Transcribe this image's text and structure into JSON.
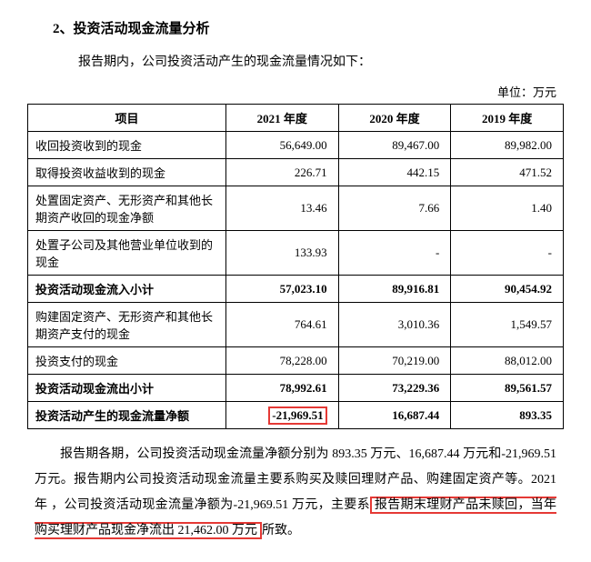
{
  "section_title": "2、投资活动现金流量分析",
  "intro": "报告期内，公司投资活动产生的现金流量情况如下：",
  "unit": "单位：万元",
  "table": {
    "headers": [
      "项目",
      "2021 年度",
      "2020 年度",
      "2019 年度"
    ],
    "rows": [
      {
        "label": "收回投资收到的现金",
        "y2021": "56,649.00",
        "y2020": "89,467.00",
        "y2019": "89,982.00",
        "bold": false
      },
      {
        "label": "取得投资收益收到的现金",
        "y2021": "226.71",
        "y2020": "442.15",
        "y2019": "471.52",
        "bold": false
      },
      {
        "label": "处置固定资产、无形资产和其他长期资产收回的现金净额",
        "y2021": "13.46",
        "y2020": "7.66",
        "y2019": "1.40",
        "bold": false
      },
      {
        "label": "处置子公司及其他营业单位收到的现金",
        "y2021": "133.93",
        "y2020": "-",
        "y2019": "-",
        "bold": false
      },
      {
        "label": "投资活动现金流入小计",
        "y2021": "57,023.10",
        "y2020": "89,916.81",
        "y2019": "90,454.92",
        "bold": true
      },
      {
        "label": "购建固定资产、无形资产和其他长期资产支付的现金",
        "y2021": "764.61",
        "y2020": "3,010.36",
        "y2019": "1,549.57",
        "bold": false
      },
      {
        "label": "投资支付的现金",
        "y2021": "78,228.00",
        "y2020": "70,219.00",
        "y2019": "88,012.00",
        "bold": false
      },
      {
        "label": "投资活动现金流出小计",
        "y2021": "78,992.61",
        "y2020": "73,229.36",
        "y2019": "89,561.57",
        "bold": true
      },
      {
        "label": "投资活动产生的现金流量净额",
        "y2021": "-21,969.51",
        "y2020": "16,687.44",
        "y2019": "893.35",
        "bold": true,
        "highlight2021": true
      }
    ],
    "col_widths": [
      "37%",
      "21%",
      "21%",
      "21%"
    ]
  },
  "paragraph": {
    "pre": "报告期各期，公司投资活动现金流量净额分别为 893.35 万元、16,687.44 万元和-21,969.51 万元。报告期内公司投资活动现金流量主要系购买及赎回理财产品、购建固定资产等。2021 年 ，公司投资活动现金流量净额为-21,969.51 万元，主要系",
    "highlight": "报告期末理财产品未赎回，当年购买理财产品现金净流出 21,462.00 万元",
    "post": "所致。"
  }
}
